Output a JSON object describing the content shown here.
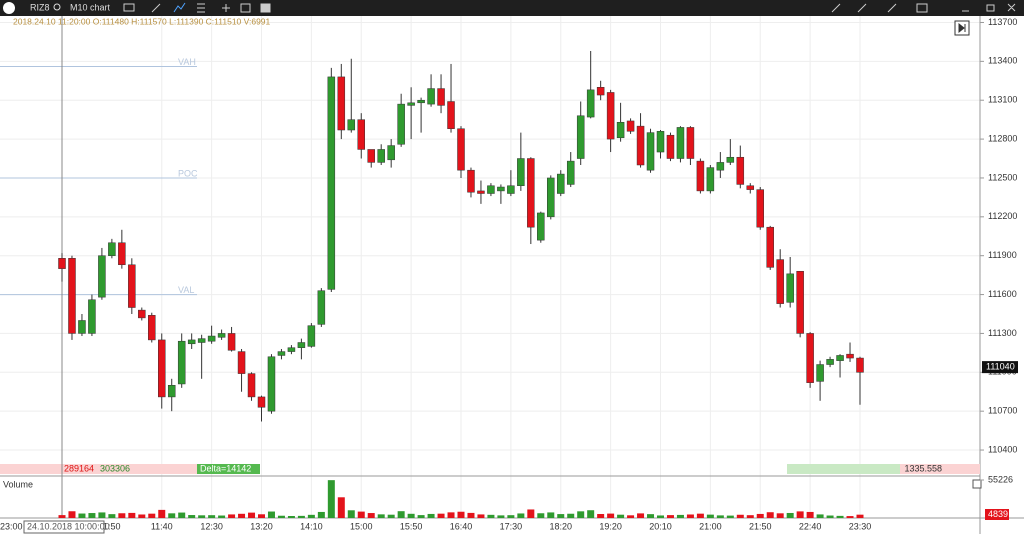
{
  "ui": {
    "symbol": "RIZ8",
    "timeframe": "M10 chart",
    "crosshair_time": "24.10.2018 10:00:00",
    "left_time": "23:00",
    "partial_time": "1:50",
    "delta": {
      "sell": "289164",
      "buy": "303306",
      "delta": "Delta=14142",
      "right": "1335.558"
    }
  },
  "chart_data": {
    "type": "candlestick",
    "info": "2018.24.10 11:20:00  O:111480  H:111570  L:111390  C:111510  V:6991",
    "up_color": "#2f9a2f",
    "down_color": "#e3131b",
    "categories": [
      null,
      null,
      null,
      null,
      null,
      null,
      null,
      null,
      null,
      null,
      "11:40",
      null,
      null,
      null,
      null,
      "12:30",
      null,
      null,
      null,
      null,
      "13:20",
      null,
      null,
      null,
      null,
      "14:10",
      null,
      null,
      null,
      null,
      "15:00",
      null,
      null,
      null,
      null,
      "15:50",
      null,
      null,
      null,
      null,
      "16:40",
      null,
      null,
      null,
      null,
      "17:30",
      null,
      null,
      null,
      null,
      "18:20",
      null,
      null,
      null,
      null,
      "19:20",
      null,
      null,
      null,
      null,
      "20:10",
      null,
      null,
      null,
      null,
      "21:00",
      null,
      null,
      null,
      null,
      "21:50",
      null,
      null,
      null,
      null,
      "22:40",
      null,
      null,
      null,
      null,
      "23:30"
    ],
    "open": [
      111880,
      111880,
      111300,
      111300,
      111580,
      111900,
      112000,
      111830,
      111480,
      111440,
      111250,
      110810,
      110910,
      111220,
      111230,
      111240,
      111270,
      111300,
      111160,
      110990,
      110810,
      110700,
      111130,
      111160,
      111190,
      111200,
      111370,
      111640,
      113280,
      112870,
      112950,
      112720,
      112620,
      112640,
      112760,
      113060,
      113080,
      113070,
      113190,
      113090,
      112880,
      112560,
      112400,
      112380,
      112400,
      112380,
      112440,
      112650,
      112020,
      112200,
      112380,
      112450,
      112650,
      112970,
      113200,
      113160,
      112810,
      112940,
      112900,
      112560,
      112700,
      112830,
      112650,
      112890,
      112630,
      112400,
      112560,
      112620,
      112660,
      112440,
      112410,
      112120,
      111870,
      111540,
      111780,
      111300,
      110930,
      111060,
      111090,
      111140,
      111110
    ],
    "high": [
      111920,
      111900,
      111450,
      111600,
      111960,
      112030,
      112100,
      111880,
      111500,
      111460,
      111300,
      110950,
      111300,
      111300,
      111290,
      111360,
      111330,
      111350,
      111180,
      111000,
      110820,
      111140,
      111180,
      111210,
      111260,
      111380,
      111650,
      113350,
      113380,
      113420,
      113000,
      112700,
      112760,
      112800,
      113150,
      113200,
      113120,
      113300,
      113300,
      113380,
      112900,
      112580,
      112480,
      112460,
      112450,
      112560,
      112850,
      112660,
      112240,
      112520,
      112560,
      112700,
      113090,
      113480,
      113250,
      113180,
      113080,
      112960,
      113000,
      112880,
      112870,
      112850,
      112900,
      112900,
      112650,
      112600,
      112700,
      112800,
      112750,
      112460,
      112430,
      112130,
      111950,
      111890,
      111780,
      111310,
      111090,
      111120,
      111140,
      111230,
      111120
    ],
    "low": [
      111700,
      111250,
      111280,
      111280,
      111560,
      111880,
      111800,
      111450,
      111400,
      111230,
      110720,
      110700,
      110880,
      111180,
      110950,
      111220,
      111250,
      111160,
      110850,
      110780,
      110620,
      110680,
      111100,
      111140,
      111100,
      111190,
      111350,
      111620,
      112800,
      112850,
      112650,
      112580,
      112600,
      112580,
      112740,
      112800,
      112850,
      113050,
      113000,
      112850,
      112500,
      112350,
      112300,
      112360,
      112300,
      112360,
      112400,
      111990,
      112000,
      112180,
      112360,
      112430,
      112600,
      112960,
      113100,
      112700,
      112780,
      112840,
      112580,
      112540,
      112650,
      112630,
      112620,
      112600,
      112380,
      112380,
      112500,
      112600,
      112420,
      112380,
      112100,
      111790,
      111500,
      111500,
      111270,
      110880,
      110780,
      111040,
      110960,
      111080,
      110750
    ],
    "close": [
      111800,
      111300,
      111400,
      111560,
      111900,
      112000,
      111830,
      111500,
      111420,
      111250,
      110810,
      110900,
      111240,
      111250,
      111260,
      111280,
      111300,
      111170,
      110990,
      110810,
      110730,
      111120,
      111160,
      111190,
      111230,
      111360,
      111630,
      113280,
      112870,
      112950,
      112720,
      112620,
      112720,
      112750,
      113070,
      113080,
      113100,
      113190,
      113060,
      112880,
      112560,
      112390,
      112380,
      112440,
      112430,
      112440,
      112650,
      112120,
      112230,
      112500,
      112530,
      112630,
      112980,
      113180,
      113140,
      112800,
      112930,
      112860,
      112600,
      112850,
      112860,
      112650,
      112890,
      112650,
      112400,
      112580,
      112620,
      112660,
      112450,
      112410,
      112120,
      111810,
      111530,
      111760,
      111300,
      110920,
      111060,
      111100,
      111130,
      111110,
      111000
    ],
    "ylim": [
      110300,
      113750
    ],
    "yticks": [
      110400,
      110700,
      111000,
      111300,
      111600,
      111900,
      112200,
      112500,
      112800,
      113100,
      113400,
      113700
    ],
    "last_price": 111040,
    "levels": [
      {
        "label": "VAH",
        "value": 113360
      },
      {
        "label": "POC",
        "value": 112500
      },
      {
        "label": "VAL",
        "value": 111600
      }
    ],
    "volume": {
      "title": "Volume",
      "ylim": [
        0,
        55226
      ],
      "yticks": [
        55226
      ],
      "values": [
        4200,
        9800,
        6500,
        7200,
        8100,
        5600,
        6900,
        7400,
        5100,
        6300,
        11800,
        6800,
        7900,
        4300,
        3900,
        4100,
        3600,
        5200,
        6100,
        7800,
        5400,
        9400,
        3300,
        2900,
        3100,
        4600,
        8800,
        55000,
        30100,
        11200,
        9300,
        7200,
        5300,
        4800,
        9900,
        6100,
        4200,
        5900,
        6300,
        8200,
        9100,
        7400,
        5200,
        4600,
        3800,
        4100,
        6600,
        12400,
        6900,
        8100,
        5700,
        6200,
        9700,
        11300,
        5800,
        6400,
        4800,
        3900,
        6700,
        5600,
        3700,
        4200,
        4500,
        5100,
        6300,
        4900,
        3800,
        3500,
        4700,
        4100,
        5900,
        8400,
        6800,
        7300,
        9600,
        8800,
        5200,
        3600,
        3100,
        2800,
        4839
      ]
    }
  }
}
